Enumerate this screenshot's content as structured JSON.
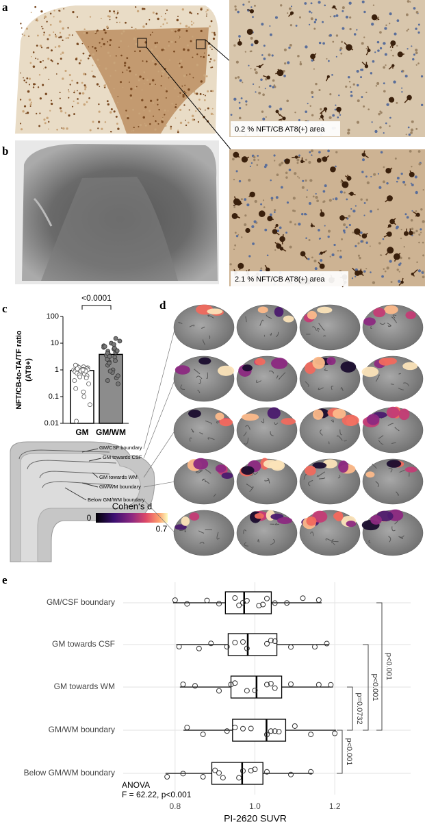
{
  "panel_labels": [
    "a",
    "b",
    "c",
    "d",
    "e"
  ],
  "micrographs": [
    {
      "caption": "0.2 % NFT/CB AT8(+) area"
    },
    {
      "caption": "2.1 % NFT/CB AT8(+) area"
    }
  ],
  "schematic": {
    "labels": [
      "GM/CSF boundary",
      "GM towards CSF",
      "GM towards WM",
      "GM/WM boundary",
      "Below GM/WM boundary"
    ]
  },
  "colorbar": {
    "title": "Cohen‘s d",
    "min": 0,
    "max": 0.7
  },
  "chart_data": [
    {
      "type": "bar",
      "ylabel": [
        "NFT/CB-to-TA/TF ratio",
        "(AT8+)"
      ],
      "log_scale": true,
      "categories": [
        "GM",
        "GM/WM"
      ],
      "values": [
        0.95,
        3.8
      ],
      "colors": [
        "#ffffff",
        "#8c8c8c"
      ],
      "points": [
        [
          1.2,
          1.1,
          1.0,
          0.9,
          1.3,
          0.8,
          1.4,
          1.0,
          0.95,
          1.05,
          0.7,
          1.15,
          0.85,
          1.25,
          0.6,
          0.5,
          0.4,
          0.3,
          0.2,
          0.15,
          0.1,
          0.05,
          0.012,
          1.5,
          0.9,
          1.1,
          1.0,
          0.75,
          0.65,
          0.55
        ],
        [
          5,
          4,
          6,
          3,
          8,
          10,
          2,
          7,
          4.5,
          5.5,
          3.5,
          2.5,
          1.5,
          1,
          0.8,
          0.5,
          0.4,
          0.3,
          9,
          12,
          15,
          6.5,
          4.2,
          3.2,
          2.2,
          1.8,
          0.9,
          0.6,
          7.5,
          5.2
        ]
      ],
      "annotation": "<0.0001",
      "ylim": [
        0.01,
        100
      ],
      "yticks": [
        0.01,
        0.1,
        1,
        10,
        100
      ]
    },
    {
      "type": "box",
      "xlabel": "PI-2620 SUVR",
      "categories": [
        "GM/CSF boundary",
        "GM towards CSF",
        "GM towards WM",
        "GM/WM boundary",
        "Below GM/WM boundary"
      ],
      "boxes": [
        {
          "min": 0.795,
          "q1": 0.926,
          "median": 0.973,
          "q3": 1.041,
          "max": 1.167,
          "points": [
            0.8,
            0.83,
            0.88,
            0.91,
            0.95,
            0.96,
            0.97,
            0.98,
            1.01,
            1.02,
            1.03,
            1.05,
            1.08,
            1.12,
            1.16
          ]
        },
        {
          "min": 0.803,
          "q1": 0.933,
          "median": 0.982,
          "q3": 1.055,
          "max": 1.186,
          "points": [
            0.81,
            0.86,
            0.89,
            0.93,
            0.95,
            0.97,
            0.98,
            1.03,
            1.04,
            1.05,
            1.09,
            1.15,
            1.18
          ]
        },
        {
          "min": 0.812,
          "q1": 0.94,
          "median": 1.004,
          "q3": 1.067,
          "max": 1.195,
          "points": [
            0.82,
            0.85,
            0.91,
            0.94,
            0.95,
            0.98,
            1.0,
            1.03,
            1.04,
            1.05,
            1.09,
            1.16,
            1.19
          ]
        },
        {
          "min": 0.821,
          "q1": 0.944,
          "median": 1.029,
          "q3": 1.077,
          "max": 1.203,
          "points": [
            0.83,
            0.87,
            0.93,
            0.95,
            0.97,
            0.99,
            1.03,
            1.04,
            1.05,
            1.06,
            1.1,
            1.14,
            1.2
          ]
        },
        {
          "min": 0.776,
          "q1": 0.892,
          "median": 0.968,
          "q3": 1.02,
          "max": 1.143,
          "points": [
            0.78,
            0.82,
            0.87,
            0.9,
            0.91,
            0.92,
            0.96,
            0.97,
            0.99,
            1.0,
            1.03,
            1.09,
            1.14
          ]
        }
      ],
      "comparisons": [
        {
          "from": "GM/CSF boundary",
          "to": "GM/WM boundary",
          "label": "p<0.001"
        },
        {
          "from": "GM towards CSF",
          "to": "GM/WM boundary",
          "label": "p<0.001"
        },
        {
          "from": "GM towards WM",
          "to": "GM/WM boundary",
          "label": "p=0.0732"
        },
        {
          "from": "GM/WM boundary",
          "to": "Below GM/WM boundary",
          "label": "p<0.001"
        }
      ],
      "annotation": [
        "ANOVA",
        "F = 62.22, p<0.001"
      ],
      "xlim": [
        0.67,
        1.39
      ],
      "xticks": [
        0.8,
        {
          "value": 1,
          "label": "1.0"
        },
        1.2
      ],
      "grid": true
    }
  ]
}
